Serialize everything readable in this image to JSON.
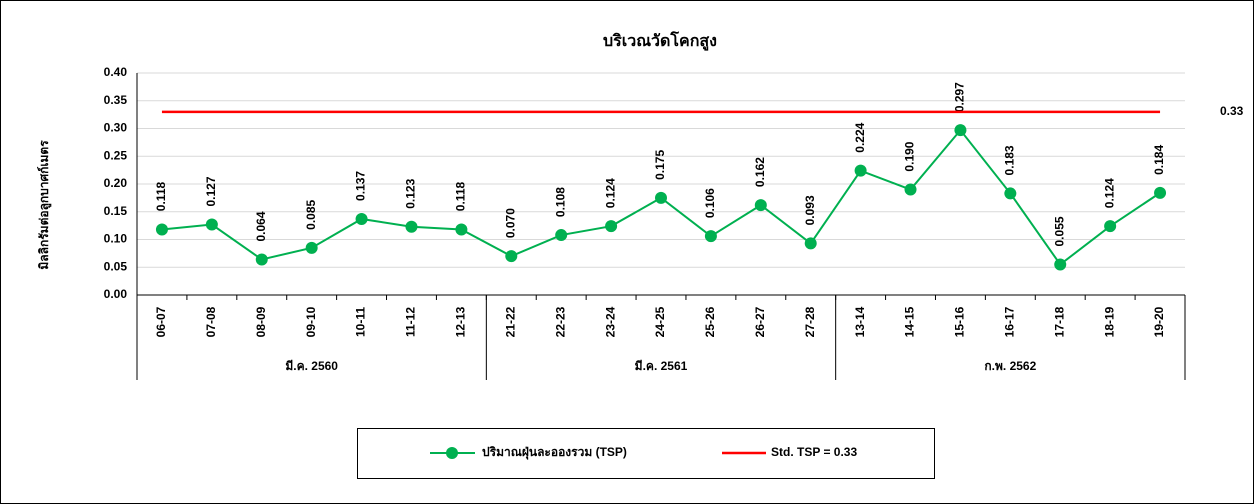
{
  "chart_data": {
    "type": "line",
    "title": "บริเวณวัดโคกสูง",
    "y_label": "มิลลิกรัมต่อลูกบาศก์เมตร",
    "categories": [
      "06-07",
      "07-08",
      "08-09",
      "09-10",
      "10-11",
      "11-12",
      "12-13",
      "21-22",
      "22-23",
      "23-24",
      "24-25",
      "25-26",
      "26-27",
      "27-28",
      "13-14",
      "14-15",
      "15-16",
      "16-17",
      "17-18",
      "18-19",
      "19-20"
    ],
    "group_labels": [
      "มี.ค. 2560",
      "มี.ค. 2561",
      "ก.พ. 2562"
    ],
    "group_sizes": [
      7,
      7,
      7
    ],
    "series": [
      {
        "name": "ปริมาณฝุ่นละอองรวม (TSP)",
        "color": "#00b050",
        "values": [
          0.118,
          0.127,
          0.064,
          0.085,
          0.137,
          0.123,
          0.118,
          0.07,
          0.108,
          0.124,
          0.175,
          0.106,
          0.162,
          0.093,
          0.224,
          0.19,
          0.297,
          0.183,
          0.055,
          0.124,
          0.184
        ],
        "value_labels": [
          "0.118",
          "0.127",
          "0.064",
          "0.085",
          "0.137",
          "0.123",
          "0.118",
          "0.070",
          "0.108",
          "0.124",
          "0.175",
          "0.106",
          "0.162",
          "0.093",
          "0.224",
          "0.190",
          "0.297",
          "0.183",
          "0.055",
          "0.124",
          "0.184"
        ]
      },
      {
        "name": "Std. TSP = 0.33",
        "color": "#ff0000",
        "values": [
          0.33,
          0.33,
          0.33,
          0.33,
          0.33,
          0.33,
          0.33,
          0.33,
          0.33,
          0.33,
          0.33,
          0.33,
          0.33,
          0.33,
          0.33,
          0.33,
          0.33,
          0.33,
          0.33,
          0.33,
          0.33
        ],
        "end_label": "0.33"
      }
    ],
    "ylim": [
      0,
      0.4
    ],
    "yticks": [
      {
        "value": 0,
        "label": "0.00"
      },
      {
        "value": 0.05,
        "label": "0.05"
      },
      {
        "value": 0.1,
        "label": "0.10"
      },
      {
        "value": 0.15,
        "label": "0.15"
      },
      {
        "value": 0.2,
        "label": "0.20"
      },
      {
        "value": 0.25,
        "label": "0.25"
      },
      {
        "value": 0.3,
        "label": "0.30"
      },
      {
        "value": 0.35,
        "label": "0.35"
      },
      {
        "value": 0.4,
        "label": "0.40"
      }
    ],
    "grid": true,
    "legend": "bottom"
  }
}
